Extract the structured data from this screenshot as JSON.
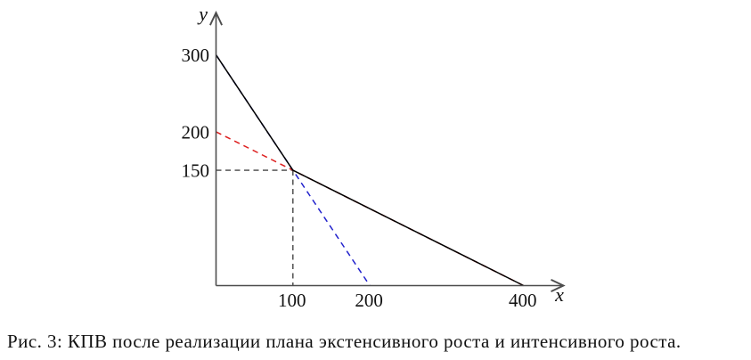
{
  "figure": {
    "caption": "Рис. 3: КПВ после реализации плана экстенсивного роста и интенсивного роста."
  },
  "chart_data": {
    "type": "line",
    "title": "",
    "xlabel": "x",
    "ylabel": "y",
    "xlim": [
      0,
      451
    ],
    "ylim": [
      0,
      354
    ],
    "grid": false,
    "legend": false,
    "axis_color": "#4d4d4d",
    "x_ticks": [
      {
        "value": 100,
        "label": "100"
      },
      {
        "value": 200,
        "label": "200"
      },
      {
        "value": 400,
        "label": "400"
      }
    ],
    "y_ticks": [
      {
        "value": 150,
        "label": "150"
      },
      {
        "value": 200,
        "label": "200"
      },
      {
        "value": 300,
        "label": "300"
      }
    ],
    "series": [
      {
        "id": "intensive-growth-line-dashed-blue",
        "color": "#2222cc",
        "style": "dashed",
        "points": [
          [
            0,
            300
          ],
          [
            200,
            0
          ]
        ]
      },
      {
        "id": "extensive-growth-line-dashed-red",
        "color": "#dd1f1f",
        "style": "dashed",
        "points": [
          [
            0,
            200
          ],
          [
            400,
            0
          ]
        ]
      },
      {
        "id": "new-ppf-solid-black",
        "color": "#000000",
        "style": "solid",
        "points": [
          [
            0,
            300
          ],
          [
            100,
            150
          ],
          [
            400,
            0
          ]
        ]
      }
    ],
    "guide_lines": [
      {
        "id": "horizontal-guide-y150",
        "color": "#454545",
        "style": "dashed",
        "points": [
          [
            0,
            150
          ],
          [
            100,
            150
          ]
        ]
      },
      {
        "id": "vertical-guide-x100",
        "color": "#454545",
        "style": "dashed",
        "points": [
          [
            100,
            150
          ],
          [
            100,
            0
          ]
        ]
      }
    ],
    "kink_point": [
      100,
      150
    ]
  }
}
